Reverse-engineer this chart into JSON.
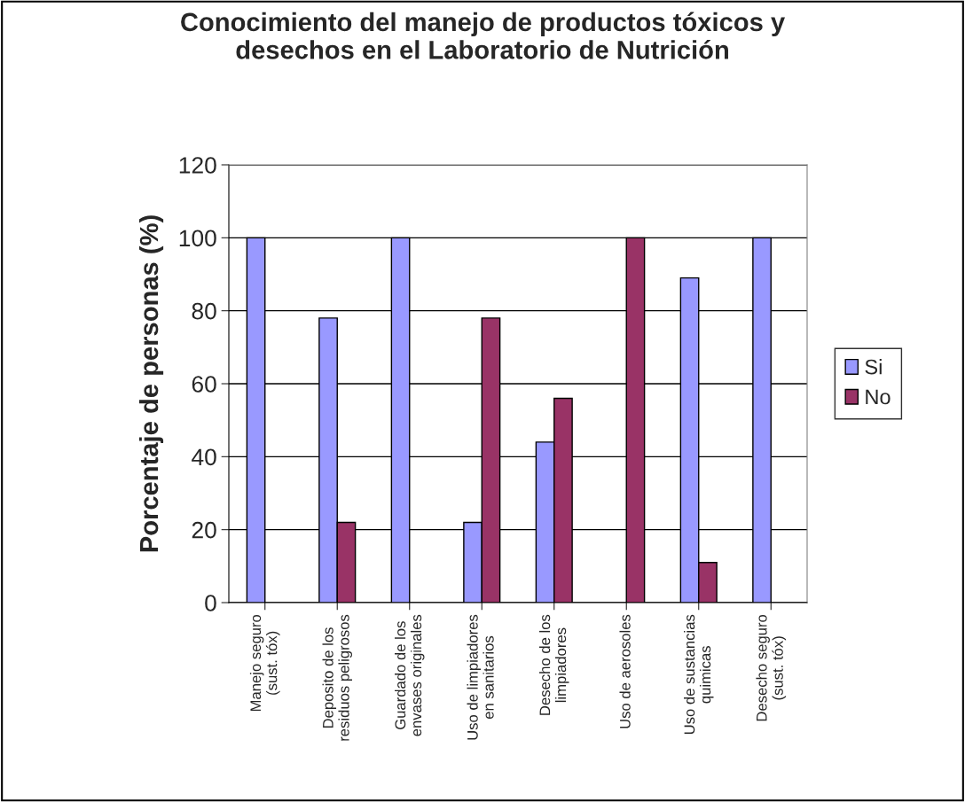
{
  "chart_data": {
    "type": "bar",
    "title": "Conocimiento del manejo de productos tóxicos y\ndesechos en el Laboratorio de Nutrición",
    "ylabel": "Porcentaje de personas (%)",
    "categories": [
      "Manejo seguro\n(sust. tóx)",
      "Deposito de los\nresiduos peligrosos",
      "Guardado de los\nenvases originales",
      "Uso de limpiadores\nen sanitarios",
      "Desecho de los\nlimpiadores",
      "Uso de aerosoles",
      "Uso de sustancias\nquimicas",
      "Desecho seguro\n(sust. tóx)"
    ],
    "series": [
      {
        "name": "Si",
        "color": "#9999ff",
        "values": [
          100,
          78,
          100,
          22,
          44,
          null,
          89,
          100
        ]
      },
      {
        "name": "No",
        "color": "#993366",
        "values": [
          null,
          22,
          null,
          78,
          56,
          100,
          11,
          null
        ]
      }
    ],
    "ylim": [
      0,
      120
    ],
    "yticks": [
      0,
      20,
      40,
      60,
      80,
      100,
      120
    ],
    "grid": "y",
    "legend": "right"
  }
}
